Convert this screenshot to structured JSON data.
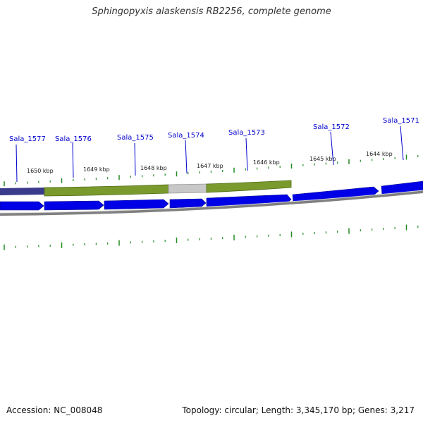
{
  "title": "Sphingopyxis alaskensis RB2256, complete genome",
  "footer": {
    "accession": "Accession: NC_008048",
    "stats": "Topology: circular; Length: 3,345,170 bp; Genes: 3,217"
  },
  "genes": [
    {
      "label": "Sala_1577"
    },
    {
      "label": "Sala_1576"
    },
    {
      "label": "Sala_1575"
    },
    {
      "label": "Sala_1574"
    },
    {
      "label": "Sala_1573"
    },
    {
      "label": "Sala_1572"
    },
    {
      "label": "Sala_1571"
    }
  ],
  "kbp_labels": [
    "1650 kbp",
    "1649 kbp",
    "1648 kbp",
    "1647 kbp",
    "1646 kbp",
    "1645 kbp",
    "1644 kbp"
  ],
  "colors": {
    "gene_arrow": "#0000e6",
    "gene_label": "#0000cc",
    "highlight_feature": "#6b8e23",
    "grey_feature": "#c0c0c0",
    "tick": "#228b22",
    "backbone": "#808080"
  }
}
